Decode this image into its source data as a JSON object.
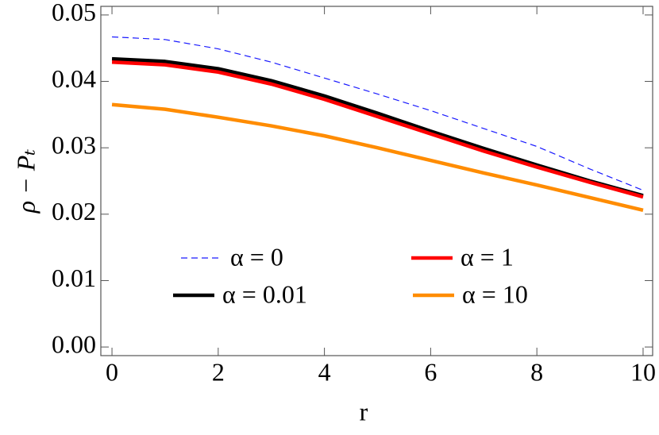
{
  "chart_data": {
    "type": "line",
    "x_label": "r",
    "y_label": "ρ − Pₜ",
    "x": [
      0,
      1,
      2,
      3,
      4,
      5,
      6,
      7,
      8,
      9,
      10
    ],
    "series": [
      {
        "name": "α = 0",
        "color": "#1a1aff",
        "dash": true,
        "values": [
          0.0467,
          0.0463,
          0.0449,
          0.0429,
          0.0405,
          0.0381,
          0.0356,
          0.0329,
          0.0302,
          0.0268,
          0.0236
        ]
      },
      {
        "name": "α = 0.01",
        "color": "#000000",
        "values": [
          0.0434,
          0.043,
          0.0419,
          0.0401,
          0.0378,
          0.0352,
          0.0325,
          0.0299,
          0.0274,
          0.025,
          0.0228
        ]
      },
      {
        "name": "α = 1",
        "color": "#ff0000",
        "values": [
          0.0429,
          0.0425,
          0.0414,
          0.0396,
          0.0373,
          0.0347,
          0.0321,
          0.0295,
          0.0271,
          0.0248,
          0.0226
        ]
      },
      {
        "name": "α = 10",
        "color": "#ff8c00",
        "values": [
          0.0365,
          0.0358,
          0.0346,
          0.0333,
          0.0318,
          0.03,
          0.0281,
          0.0262,
          0.0244,
          0.0225,
          0.0206
        ]
      }
    ],
    "xlim": [
      -0.21,
      10.18
    ],
    "ylim": [
      -0.0013,
      0.0513
    ],
    "xticks": [
      0,
      2,
      4,
      6,
      8,
      10
    ],
    "yticks": [
      {
        "value": 0,
        "label": "0.00"
      },
      0.01,
      0.02,
      0.03,
      0.04,
      0.05
    ],
    "grid": false
  }
}
